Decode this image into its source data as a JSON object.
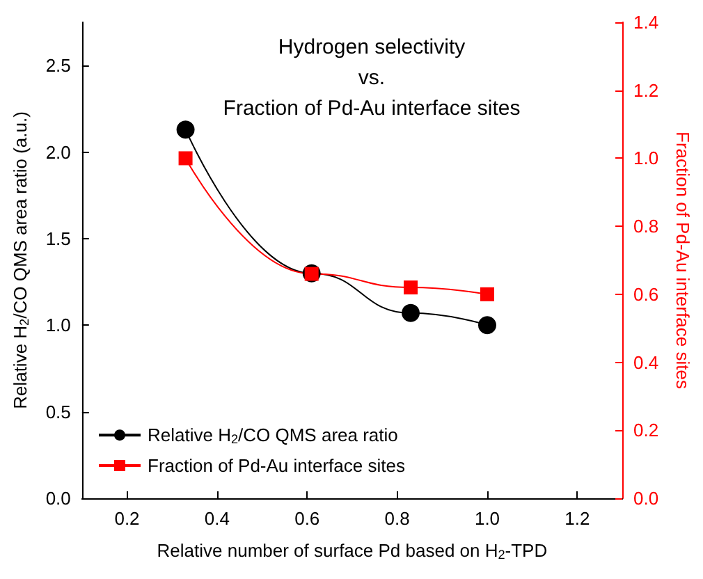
{
  "chart_data": {
    "type": "line",
    "title": "Hydrogen selectivity\nvs.\nFraction of Pd-Au interface sites",
    "xlabel": "Relative number of surface Pd based on H$_{2}$-TPD",
    "ylabel": "Relative H$_{2}$/CO QMS area ratio (a.u.)",
    "y2label": "Fraction of Pd-Au interface sites",
    "xlim": [
      0.1,
      1.3
    ],
    "xticks": [
      0.2,
      0.4,
      0.6,
      0.8,
      {
        "value": 1,
        "label": "1.0"
      },
      1.2
    ],
    "ylim": [
      0,
      2.75
    ],
    "yticks": [
      {
        "value": 0,
        "label": "0.0"
      },
      0.5,
      {
        "value": 1,
        "label": "1.0"
      },
      1.5,
      {
        "value": 2,
        "label": "2.0"
      },
      2.5
    ],
    "y2lim": [
      0,
      1.4
    ],
    "y2ticks": [
      {
        "value": 0,
        "label": "0.0"
      },
      0.2,
      0.4,
      0.6,
      0.8,
      {
        "value": 1,
        "label": "1.0"
      },
      1.2,
      1.4
    ],
    "x": [
      0.33,
      0.61,
      0.83,
      1.0
    ],
    "series": [
      {
        "name": "Relative H$_{2}$/CO QMS area ratio",
        "color": "#000000",
        "marker": "circle",
        "values": [
          2.13,
          1.3,
          1.07,
          1.0
        ]
      },
      {
        "name": "Fraction of Pd-Au interface sites",
        "color": "#ff0000",
        "marker": "square",
        "axis": "y2",
        "values": [
          1.0,
          0.66,
          0.62,
          0.6
        ]
      }
    ],
    "legend": "bottom left",
    "grid": false
  }
}
